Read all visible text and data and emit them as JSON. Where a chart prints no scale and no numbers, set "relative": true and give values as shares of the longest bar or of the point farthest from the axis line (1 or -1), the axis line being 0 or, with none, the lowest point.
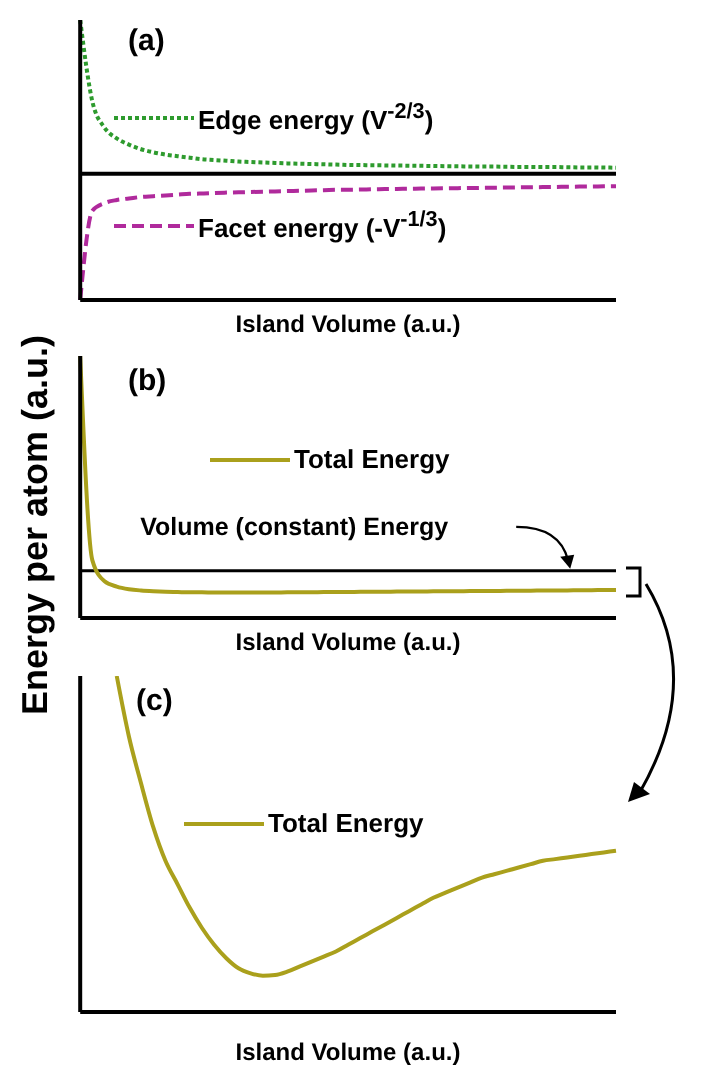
{
  "chart_data": [
    {
      "type": "line",
      "title": "(a)",
      "xlabel": "Island Volume (a.u.)",
      "relative": true,
      "tick_labels": false,
      "legend": "left",
      "categories": [
        null,
        null,
        null,
        null,
        null,
        null,
        null,
        null,
        null,
        null,
        null,
        null,
        null,
        null,
        null,
        null,
        null,
        null,
        null,
        null,
        null,
        null,
        null,
        null,
        null,
        null,
        null,
        null,
        null,
        null,
        null,
        null,
        null,
        null,
        null,
        null,
        null,
        null,
        null,
        null,
        null,
        null,
        null,
        null,
        null
      ],
      "series": [
        {
          "name": "Edge energy (V$^{-2/3}$)",
          "color": "#2e9b2e",
          "line_style": "dotted",
          "values": [
            1.0,
            0.47,
            0.3,
            0.23,
            0.19,
            0.16,
            0.14,
            0.125,
            0.115,
            0.105,
            0.095,
            0.09,
            0.085,
            0.08,
            0.077,
            0.074,
            0.071,
            0.068,
            0.066,
            0.064,
            0.062,
            0.06,
            0.058,
            0.057,
            0.056,
            0.055,
            0.054,
            0.053,
            0.052,
            0.051,
            0.05,
            0.049,
            0.048,
            0.047,
            0.047,
            0.046,
            0.045,
            0.045,
            0.044,
            0.044,
            0.043,
            0.042,
            0.042,
            0.041,
            0.04
          ]
        },
        {
          "name": "Facet energy (-V$^{-1/3}$)",
          "color": "#b02a9c",
          "line_style": "dashed",
          "values": [
            -0.82,
            -0.24,
            -0.19,
            -0.17,
            -0.16,
            -0.15,
            -0.145,
            -0.14,
            -0.135,
            -0.13,
            -0.128,
            -0.125,
            -0.122,
            -0.12,
            -0.118,
            -0.116,
            -0.114,
            -0.112,
            -0.11,
            -0.108,
            -0.106,
            -0.104,
            -0.103,
            -0.102,
            -0.1,
            -0.099,
            -0.098,
            -0.097,
            -0.096,
            -0.095,
            -0.094,
            -0.093,
            -0.092,
            -0.091,
            -0.09,
            -0.089,
            -0.088,
            -0.087,
            -0.086,
            -0.085,
            -0.084,
            -0.083,
            -0.082,
            -0.081,
            -0.08
          ]
        }
      ]
    },
    {
      "type": "line",
      "title": "(b)",
      "xlabel": "Island Volume (a.u.)",
      "relative": true,
      "tick_labels": false,
      "legend": "left",
      "categories": [
        null,
        null,
        null,
        null,
        null,
        null,
        null,
        null,
        null,
        null,
        null,
        null,
        null,
        null,
        null,
        null,
        null,
        null,
        null,
        null,
        null,
        null,
        null,
        null,
        null,
        null,
        null,
        null,
        null,
        null,
        null,
        null,
        null,
        null,
        null,
        null,
        null,
        null,
        null,
        null,
        null,
        null,
        null,
        null,
        null
      ],
      "series": [
        {
          "name": "Total Energy",
          "color": "#aaa01c",
          "line_style": "solid",
          "values": [
            1.0,
            0.22,
            0.14,
            0.12,
            0.11,
            0.105,
            0.102,
            0.1,
            0.099,
            0.098,
            0.098,
            0.097,
            0.097,
            0.097,
            0.097,
            0.097,
            0.097,
            0.098,
            0.098,
            0.098,
            0.099,
            0.099,
            0.099,
            0.1,
            0.1,
            0.1,
            0.101,
            0.101,
            0.101,
            0.102,
            0.102,
            0.102,
            0.103,
            0.103,
            0.103,
            0.104,
            0.104,
            0.104,
            0.105,
            0.105,
            0.105,
            0.106,
            0.106,
            0.107,
            0.107
          ]
        }
      ],
      "ref_lines": [
        {
          "axis": "y",
          "value": 0.18,
          "label": "Volume (constant) Energy",
          "color": "#000000"
        }
      ]
    },
    {
      "type": "line",
      "title": "(c)",
      "xlabel": "Island Volume (a.u.)",
      "ylabel": "Energy per atom (a.u.)",
      "relative": true,
      "tick_labels": false,
      "legend": "left",
      "categories": [
        null,
        null,
        null,
        null,
        null,
        null,
        null,
        null,
        null,
        null,
        null,
        null,
        null,
        null,
        null,
        null,
        null,
        null,
        null,
        null,
        null,
        null,
        null,
        null,
        null,
        null,
        null,
        null,
        null,
        null,
        null,
        null,
        null,
        null,
        null,
        null,
        null,
        null,
        null,
        null,
        null,
        null,
        null,
        null,
        null
      ],
      "series": [
        {
          "name": "Total Energy",
          "color": "#aaa01c",
          "line_style": "solid",
          "values": [
            null,
            null,
            null,
            1.0,
            0.82,
            0.68,
            0.55,
            0.45,
            0.38,
            0.31,
            0.25,
            0.2,
            0.16,
            0.13,
            0.115,
            0.108,
            0.11,
            0.12,
            0.135,
            0.15,
            0.165,
            0.18,
            0.2,
            0.22,
            0.24,
            0.26,
            0.28,
            0.3,
            0.32,
            0.34,
            0.355,
            0.37,
            0.385,
            0.4,
            0.41,
            0.42,
            0.43,
            0.44,
            0.45,
            0.455,
            0.46,
            0.465,
            0.47,
            0.475,
            0.48
          ]
        }
      ]
    }
  ]
}
